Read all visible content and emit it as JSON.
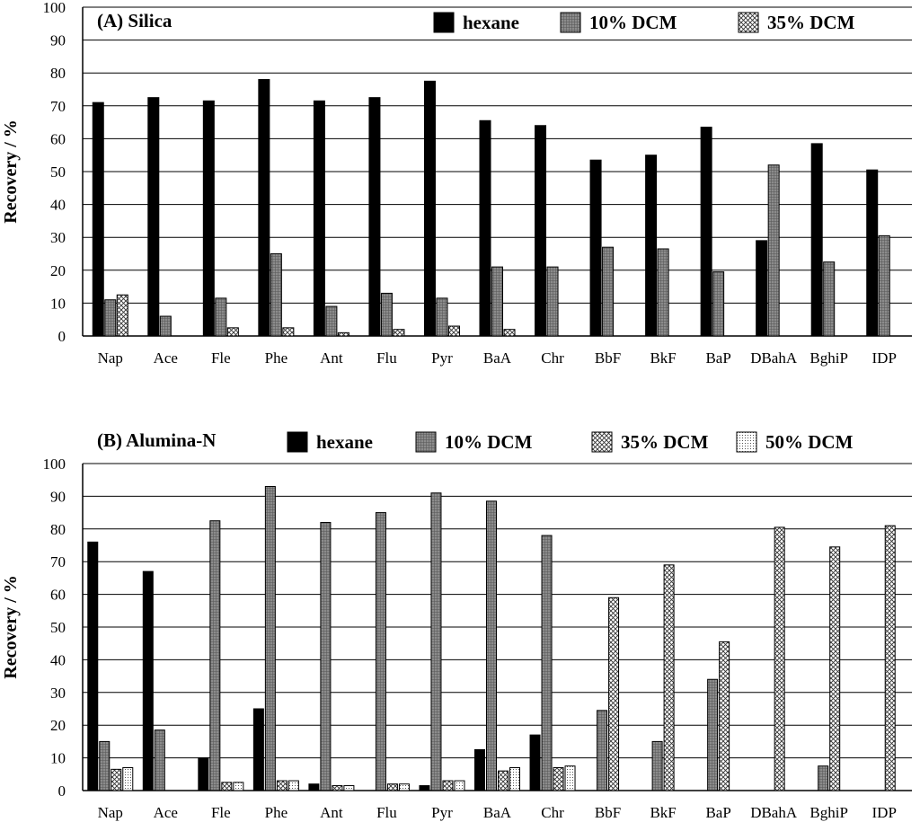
{
  "chart_data": [
    {
      "type": "bar",
      "title": "(A) Silica",
      "ylabel": "Recovery / %",
      "xlabel": "",
      "ylim": [
        0,
        100
      ],
      "yticks": [
        "0",
        "10",
        "20",
        "30",
        "40",
        "50",
        "60",
        "70",
        "80",
        "90",
        "100"
      ],
      "grid": true,
      "legend_position": "top-right",
      "categories": [
        "Nap",
        "Ace",
        "Fle",
        "Phe",
        "Ant",
        "Flu",
        "Pyr",
        "BaA",
        "Chr",
        "BbF",
        "BkF",
        "BaP",
        "DBahA",
        "BghiP",
        "IDP"
      ],
      "series": [
        {
          "name": "hexane",
          "pattern": "solid",
          "values": [
            71,
            72.5,
            71.5,
            78,
            71.5,
            72.5,
            77.5,
            65.5,
            64,
            53.5,
            55,
            63.5,
            29,
            58.5,
            50.5
          ]
        },
        {
          "name": "10% DCM",
          "pattern": "grid",
          "values": [
            11,
            6,
            11.5,
            25,
            9,
            13,
            11.5,
            21,
            21,
            27,
            26.5,
            19.5,
            52,
            22.5,
            30.5
          ]
        },
        {
          "name": "35% DCM",
          "pattern": "crosshatch",
          "values": [
            12.5,
            0,
            2.5,
            2.5,
            1,
            2,
            3,
            2,
            0,
            0,
            0,
            0,
            0,
            0,
            0
          ]
        }
      ]
    },
    {
      "type": "bar",
      "title": "(B) Alumina-N",
      "ylabel": "Recovery / %",
      "xlabel": "",
      "ylim": [
        0,
        100
      ],
      "yticks": [
        "0",
        "10",
        "20",
        "30",
        "40",
        "50",
        "60",
        "70",
        "80",
        "90",
        "100"
      ],
      "grid": true,
      "legend_position": "top",
      "categories": [
        "Nap",
        "Ace",
        "Fle",
        "Phe",
        "Ant",
        "Flu",
        "Pyr",
        "BaA",
        "Chr",
        "BbF",
        "BkF",
        "BaP",
        "DBahA",
        "BghiP",
        "IDP"
      ],
      "series": [
        {
          "name": "hexane",
          "pattern": "solid",
          "values": [
            76,
            67,
            10,
            25,
            2,
            0,
            1.5,
            12.5,
            17,
            0,
            0,
            0,
            0,
            0,
            0
          ]
        },
        {
          "name": "10% DCM",
          "pattern": "grid",
          "values": [
            15,
            18.5,
            82.5,
            93,
            82,
            85,
            91,
            88.5,
            78,
            24.5,
            15,
            34,
            0,
            7.5,
            0
          ]
        },
        {
          "name": "35% DCM",
          "pattern": "crosshatch",
          "values": [
            6.5,
            0,
            2.5,
            3,
            1.5,
            2,
            3,
            6,
            7,
            59,
            69,
            45.5,
            80.5,
            74.5,
            81
          ]
        },
        {
          "name": "50% DCM",
          "pattern": "dots",
          "values": [
            7,
            0,
            2.5,
            3,
            1.5,
            2,
            3,
            7,
            7.5,
            0,
            0,
            0,
            0,
            0,
            0
          ]
        }
      ]
    }
  ]
}
